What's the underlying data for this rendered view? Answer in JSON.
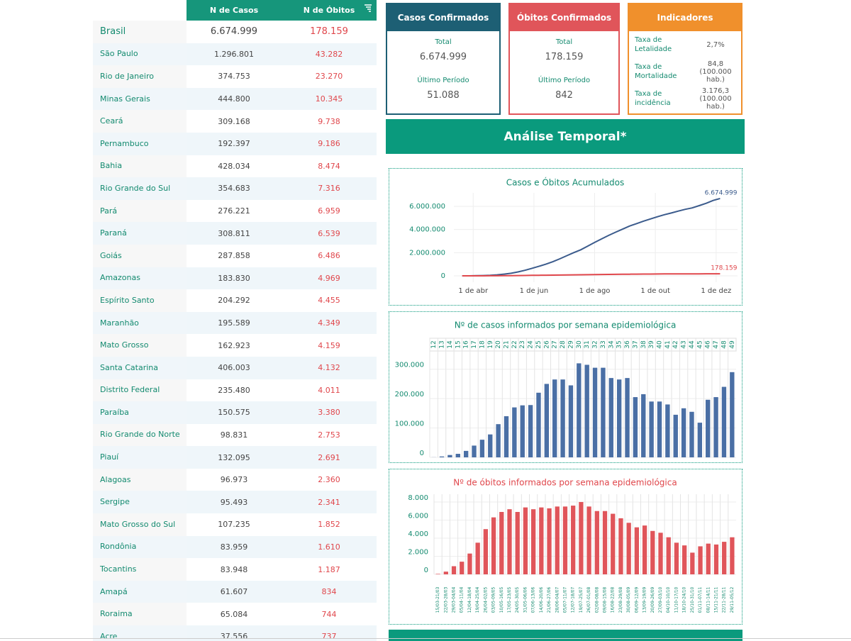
{
  "table": {
    "columns": [
      "N de Casos",
      "N de Óbitos"
    ],
    "rows": [
      [
        "Brasil",
        "6.674.999",
        "178.159"
      ],
      [
        "São Paulo",
        "1.296.801",
        "43.282"
      ],
      [
        "Rio de Janeiro",
        "374.753",
        "23.270"
      ],
      [
        "Minas Gerais",
        "444.800",
        "10.345"
      ],
      [
        "Ceará",
        "309.168",
        "9.738"
      ],
      [
        "Pernambuco",
        "192.397",
        "9.186"
      ],
      [
        "Bahia",
        "428.034",
        "8.474"
      ],
      [
        "Rio Grande do Sul",
        "354.683",
        "7.316"
      ],
      [
        "Pará",
        "276.221",
        "6.959"
      ],
      [
        "Paraná",
        "308.811",
        "6.539"
      ],
      [
        "Goiás",
        "287.858",
        "6.486"
      ],
      [
        "Amazonas",
        "183.830",
        "4.969"
      ],
      [
        "Espírito Santo",
        "204.292",
        "4.455"
      ],
      [
        "Maranhão",
        "195.589",
        "4.349"
      ],
      [
        "Mato Grosso",
        "162.923",
        "4.159"
      ],
      [
        "Santa Catarina",
        "406.003",
        "4.132"
      ],
      [
        "Distrito Federal",
        "235.480",
        "4.011"
      ],
      [
        "Paraíba",
        "150.575",
        "3.380"
      ],
      [
        "Rio Grande do Norte",
        "98.831",
        "2.753"
      ],
      [
        "Piauí",
        "132.095",
        "2.691"
      ],
      [
        "Alagoas",
        "96.973",
        "2.360"
      ],
      [
        "Sergipe",
        "95.493",
        "2.341"
      ],
      [
        "Mato Grosso do Sul",
        "107.235",
        "1.852"
      ],
      [
        "Rondônia",
        "83.959",
        "1.610"
      ],
      [
        "Tocantins",
        "83.948",
        "1.187"
      ],
      [
        "Amapá",
        "61.607",
        "834"
      ],
      [
        "Roraima",
        "65.084",
        "744"
      ],
      [
        "Acre",
        "37.556",
        "737"
      ]
    ]
  },
  "cards": [
    {
      "title": "Casos Confirmados",
      "color": "#1d5f74",
      "items": [
        {
          "label": "Total",
          "value": "6.674.999"
        },
        {
          "label": "Último Período",
          "value": "51.088"
        }
      ]
    },
    {
      "title": "Óbitos Confirmados",
      "color": "#e0555a",
      "items": [
        {
          "label": "Total",
          "value": "178.159"
        },
        {
          "label": "Último Período",
          "value": "842"
        }
      ]
    }
  ],
  "indicators": {
    "title": "Indicadores",
    "color": "#f0902c",
    "items": [
      {
        "label": "Taxa de Letalidade",
        "value": "2,7%"
      },
      {
        "label": "Taxa de Mortalidade",
        "value": "84,8",
        "note": "(100.000 hab.)"
      },
      {
        "label": "Taxa de incidência",
        "value": "3.176,3",
        "note": "(100.000 hab.)"
      }
    ]
  },
  "banner": "Análise Temporal*",
  "charts": [
    {
      "type": "line",
      "title": "Casos e Óbitos Acumulados",
      "x": [
        12,
        13,
        14,
        15,
        16,
        17,
        18,
        19,
        20,
        21,
        22,
        23,
        24,
        25,
        26,
        27,
        28,
        29,
        30,
        31,
        32,
        33,
        34,
        35,
        36,
        37,
        38,
        39,
        40,
        41,
        42,
        43,
        44,
        45,
        46,
        47,
        48,
        49
      ],
      "xlim": [
        10.8,
        51.5
      ],
      "xticks": [
        {
          "value": 13.57,
          "label": "1 de abr"
        },
        {
          "value": 22.29,
          "label": "1 de jun"
        },
        {
          "value": 31.0,
          "label": "1 de ago"
        },
        {
          "value": 39.71,
          "label": "1 de out"
        },
        {
          "value": 48.43,
          "label": "1 de dez"
        }
      ],
      "ylim": [
        -550000,
        7160000
      ],
      "yticks": [
        0,
        {
          "value": 2000000,
          "label": "2.000.000"
        },
        {
          "value": 4000000,
          "label": "4.000.000"
        },
        {
          "value": 6000000,
          "label": "6.000.000"
        }
      ],
      "grid": true,
      "series": [
        {
          "color": "#3b5b8c",
          "end_label": "6.674.999",
          "values": [
            300,
            3300,
            11300,
            23300,
            45300,
            85300,
            145300,
            223300,
            336300,
            476300,
            646300,
            823300,
            1001300,
            1221300,
            1471300,
            1736300,
            2001300,
            2246300,
            2566300,
            2881300,
            3186300,
            3491300,
            3761300,
            4026300,
            4296300,
            4501300,
            4716300,
            4906300,
            5096300,
            5276300,
            5421300,
            5588300,
            5743300,
            5861300,
            6057300,
            6262300,
            6502300,
            6674999
          ]
        },
        {
          "color": "#e0474c",
          "end_label": "178.159",
          "values": [
            50,
            350,
            1250,
            2650,
            4950,
            8450,
            13450,
            19750,
            26650,
            33850,
            40750,
            48150,
            55350,
            62750,
            70050,
            77550,
            85050,
            92650,
            100650,
            108150,
            115150,
            122150,
            128850,
            135050,
            140750,
            145950,
            151350,
            156150,
            160750,
            164850,
            167300,
            169500,
            171200,
            172600,
            173900,
            175200,
            176700,
            178159
          ]
        }
      ]
    },
    {
      "type": "bar",
      "title": "Nº de casos informados por semana epidemiológica",
      "title_color": "#138a6f",
      "categories": [
        "12",
        "13",
        "14",
        "15",
        "16",
        "17",
        "18",
        "19",
        "20",
        "21",
        "22",
        "23",
        "24",
        "25",
        "26",
        "27",
        "28",
        "29",
        "30",
        "31",
        "32",
        "33",
        "34",
        "35",
        "36",
        "37",
        "38",
        "39",
        "40",
        "41",
        "42",
        "43",
        "44",
        "45",
        "46",
        "47",
        "48",
        "49"
      ],
      "values": [
        300,
        3000,
        8000,
        12000,
        22000,
        40000,
        60000,
        78000,
        113000,
        140000,
        170000,
        177000,
        178000,
        220000,
        250000,
        265000,
        265000,
        245000,
        320000,
        315000,
        305000,
        305000,
        270000,
        265000,
        270000,
        205000,
        215000,
        190000,
        190000,
        180000,
        145000,
        167000,
        155000,
        118000,
        196000,
        205000,
        240000,
        290000
      ],
      "color": "#4a6fa5",
      "ylim": [
        0,
        362000
      ],
      "yticks": [
        0,
        {
          "value": 100000,
          "label": "100.000"
        },
        {
          "value": 200000,
          "label": "200.000"
        },
        {
          "value": 300000,
          "label": "300.000"
        }
      ],
      "label_position": "top"
    },
    {
      "type": "bar",
      "title": "Nº de óbitos informados por semana epidemiológica",
      "title_color": "#e0474c",
      "categories": [
        "15/03-21/03",
        "22/03-28/03",
        "29/03-04/04",
        "05/04-11/04",
        "12/04-18/04",
        "19/04-25/04",
        "26/04-02/05",
        "03/05-09/05",
        "10/05-16/05",
        "17/05-23/05",
        "24/05-30/05",
        "31/05-06/06",
        "07/06-13/06",
        "14/06-20/06",
        "21/06-27/06",
        "28/06-04/07",
        "05/07-11/07",
        "12/07-18/07",
        "19/07-25/07",
        "26/07-01/08",
        "02/08-08/08",
        "09/08-15/08",
        "16/08-22/08",
        "23/08-29/08",
        "30/08-05/09",
        "06/09-12/09",
        "13/09-19/09",
        "20/09-26/09",
        "27/09-03/10",
        "04/10-10/10",
        "11/10-17/10",
        "18/10-24/10",
        "25/10-31/10",
        "01/11-07/11",
        "08/11-14/11",
        "15/11-21/11",
        "22/11-28/11",
        "29/11-05/12"
      ],
      "values": [
        50,
        300,
        900,
        1400,
        2300,
        3500,
        5000,
        6300,
        6900,
        7200,
        6900,
        7400,
        7200,
        7400,
        7300,
        7500,
        7500,
        7600,
        8000,
        7500,
        7000,
        7000,
        6700,
        6200,
        5700,
        5200,
        5400,
        4800,
        4600,
        4100,
        3500,
        3200,
        2400,
        3100,
        3400,
        3300,
        3600,
        4100
      ],
      "color": "#e0555a",
      "ylim": [
        0,
        8860
      ],
      "yticks": [
        0,
        {
          "value": 2000,
          "label": "2.000"
        },
        {
          "value": 4000,
          "label": "4.000"
        },
        {
          "value": 6000,
          "label": "6.000"
        },
        {
          "value": 8000,
          "label": "8.000"
        }
      ],
      "label_position": "bottom"
    }
  ]
}
